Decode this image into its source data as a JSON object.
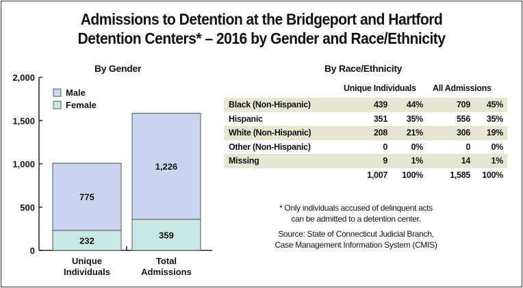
{
  "title_line1": "Admissions to Detention at the Bridgeport and Hartford",
  "title_line2": "Detention Centers* – 2016 by Gender and Race/Ethnicity",
  "chart_data": {
    "type": "bar",
    "stacked": true,
    "title": "By Gender",
    "categories": [
      "Unique Individuals",
      "Total Admissions"
    ],
    "category_lines": [
      [
        "Unique",
        "Individuals"
      ],
      [
        "Total",
        "Admissions"
      ]
    ],
    "series": [
      {
        "name": "Female",
        "values": [
          232,
          359
        ],
        "color": "#c9e8e3",
        "labels": [
          "232",
          "359"
        ]
      },
      {
        "name": "Male",
        "values": [
          775,
          1226
        ],
        "color": "#c9d5ee",
        "labels": [
          "775",
          "1,226"
        ]
      }
    ],
    "legend": [
      "Male",
      "Female"
    ],
    "legend_placement": "top-left",
    "ylim": [
      0,
      2000
    ],
    "yticks": [
      0,
      500,
      1000,
      1500,
      2000
    ],
    "ytick_labels": [
      "0",
      "500",
      "1,000",
      "1,500",
      "2,000"
    ],
    "grid": false,
    "xlabel": "",
    "ylabel": ""
  },
  "race_table": {
    "title": "By Race/Ethnicity",
    "header_unique": "Unique Individuals",
    "header_all": "All Admissions",
    "shade_color": "#e6e7d2",
    "rows": [
      {
        "label": "Black (Non-Hispanic)",
        "u_n": "439",
        "u_p": "44%",
        "a_n": "709",
        "a_p": "45%",
        "shaded": true
      },
      {
        "label": "Hispanic",
        "u_n": "351",
        "u_p": "35%",
        "a_n": "556",
        "a_p": "35%",
        "shaded": false
      },
      {
        "label": "White (Non-Hispanic)",
        "u_n": "208",
        "u_p": "21%",
        "a_n": "306",
        "a_p": "19%",
        "shaded": true
      },
      {
        "label": "Other (Non-Hispanic)",
        "u_n": "0",
        "u_p": "0%",
        "a_n": "0",
        "a_p": "0%",
        "shaded": false
      },
      {
        "label": "Missing",
        "u_n": "9",
        "u_p": "1%",
        "a_n": "14",
        "a_p": "1%",
        "shaded": true
      }
    ],
    "total": {
      "u_n": "1,007",
      "u_p": "100%",
      "a_n": "1,585",
      "a_p": "100%"
    }
  },
  "footnote_line1": "* Only individuals accused of delinquent acts",
  "footnote_line2": "can be admitted to a detention center.",
  "source_line1": "Source: State of Connecticut Judicial Branch,",
  "source_line2": "Case Management Information System (CMIS)"
}
